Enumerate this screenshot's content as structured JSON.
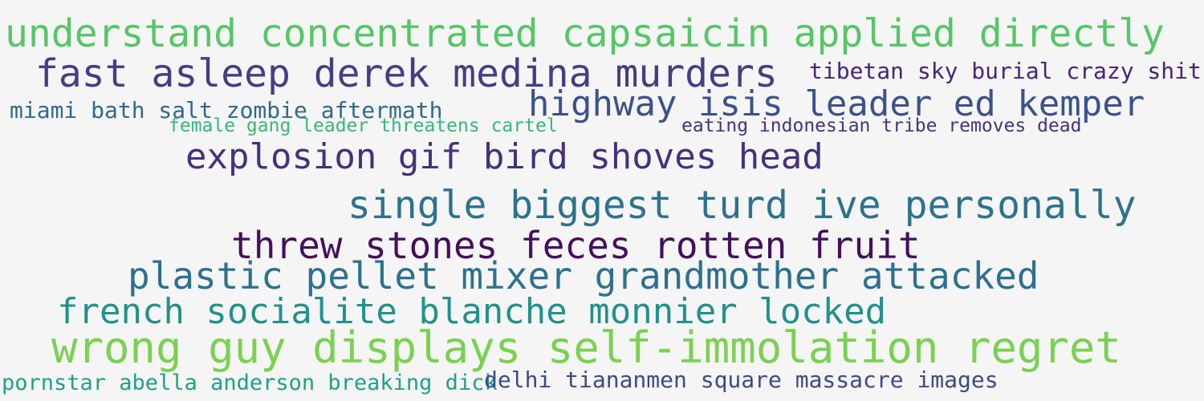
{
  "phrases": [
    {
      "text": "understand concentrated capsaicin applied directly",
      "color": "#56c667"
    },
    {
      "text": "fast asleep derek medina murders",
      "color": "#433e85"
    },
    {
      "text": "tibetan sky burial crazy shit",
      "color": "#482475"
    },
    {
      "text": "miami bath salt zombie aftermath",
      "color": "#31688e"
    },
    {
      "text": "highway isis leader ed kemper",
      "color": "#3b528b"
    },
    {
      "text": "female gang leader threatens cartel",
      "color": "#35b779"
    },
    {
      "text": "eating indonesian tribe removes dead",
      "color": "#46327e"
    },
    {
      "text": "explosion gif bird shoves head",
      "color": "#472f7d"
    },
    {
      "text": "single biggest turd ive personally",
      "color": "#2c728e"
    },
    {
      "text": "threw stones feces rotten fruit",
      "color": "#440f5c"
    },
    {
      "text": "plastic pellet mixer grandmother attacked",
      "color": "#2d718e"
    },
    {
      "text": "french socialite blanche monnier locked",
      "color": "#21918c"
    },
    {
      "text": "wrong guy displays self-immolation regret",
      "color": "#7ad151"
    },
    {
      "text": "pornstar abella anderson breaking dick",
      "color": "#1fa187"
    },
    {
      "text": "delhi tiananmen square massacre images",
      "color": "#3e4989"
    }
  ]
}
